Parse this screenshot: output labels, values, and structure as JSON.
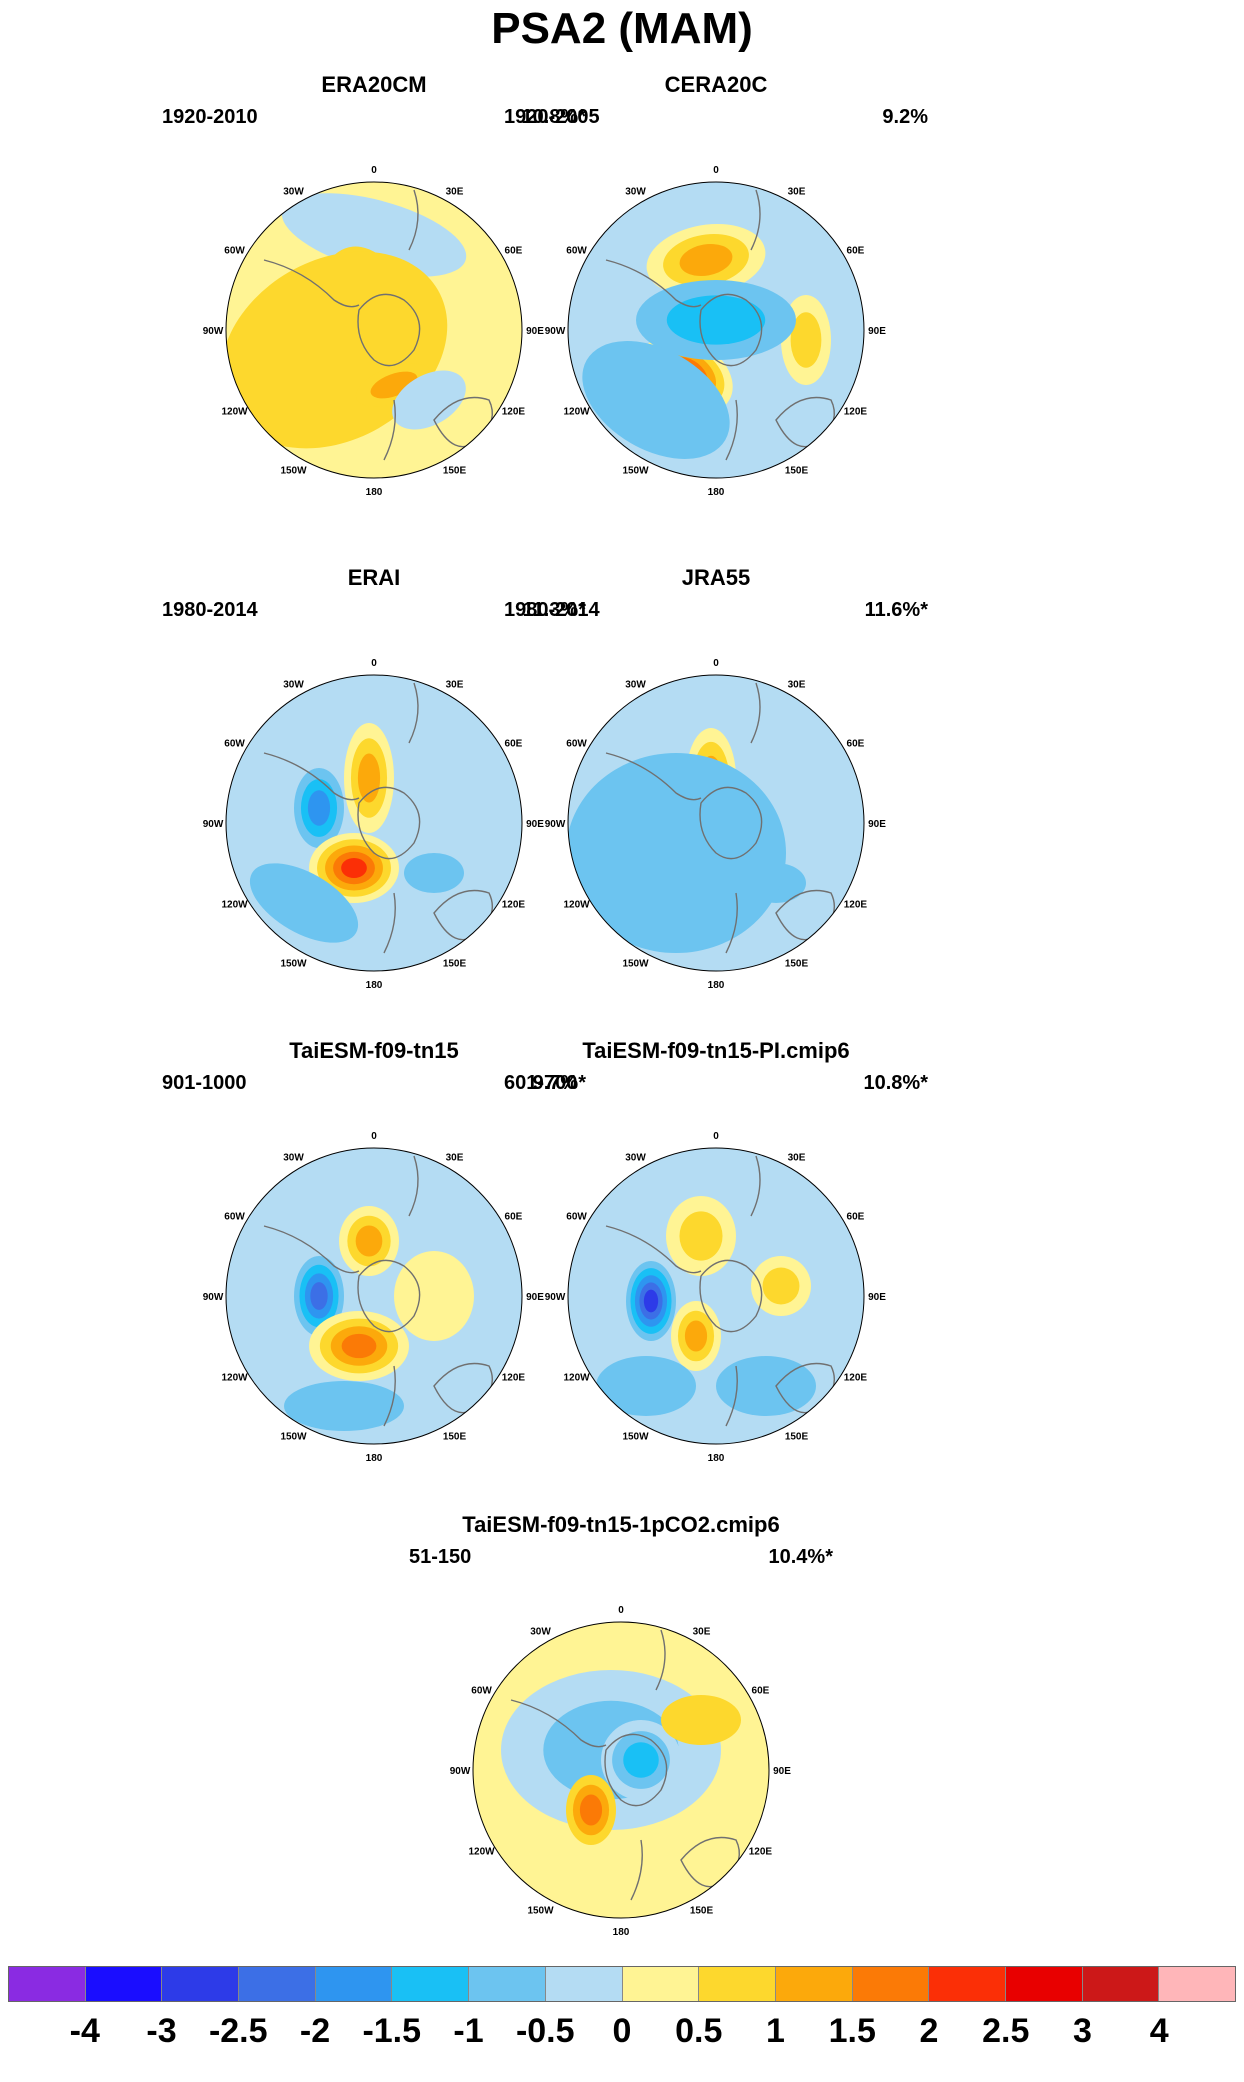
{
  "title": "PSA2 (MAM)",
  "lon_labels": [
    "0",
    "30E",
    "60E",
    "90E",
    "120E",
    "150E",
    "180",
    "150W",
    "120W",
    "90W",
    "60W",
    "30W"
  ],
  "panels": [
    {
      "title": "ERA20CM",
      "period": "1920-2010",
      "variance": "10.8%*"
    },
    {
      "title": "CERA20C",
      "period": "1920-2005",
      "variance": "9.2%"
    },
    {
      "title": "ERAI",
      "period": "1980-2014",
      "variance": "11.3%*"
    },
    {
      "title": "JRA55",
      "period": "1980-2014",
      "variance": "11.6%*"
    },
    {
      "title": "TaiESM-f09-tn15",
      "period": "901-1000",
      "variance": "9.7%*"
    },
    {
      "title": "TaiESM-f09-tn15-PI.cmip6",
      "period": "601-700",
      "variance": "10.8%*"
    },
    {
      "title": "TaiESM-f09-tn15-1pCO2.cmip6",
      "period": "51-150",
      "variance": "10.4%*"
    }
  ],
  "colorbar": {
    "ticks": [
      "-4",
      "-3",
      "-2.5",
      "-2",
      "-1.5",
      "-1",
      "-0.5",
      "0",
      "0.5",
      "1",
      "1.5",
      "2",
      "2.5",
      "3",
      "4"
    ],
    "colors": [
      "#8a2be2",
      "#1a0dff",
      "#2d3be8",
      "#3c6fe6",
      "#2e95f0",
      "#19c0f5",
      "#6cc4f0",
      "#b4dcf3",
      "#fff494",
      "#fdd82d",
      "#fca90b",
      "#fb7a06",
      "#fb2f06",
      "#e80000",
      "#cc1818",
      "#ffb6b9"
    ]
  },
  "colors": {
    "negative_weak": "#b4dcf3",
    "positive_weak": "#fff494",
    "coastline": "#707070"
  }
}
